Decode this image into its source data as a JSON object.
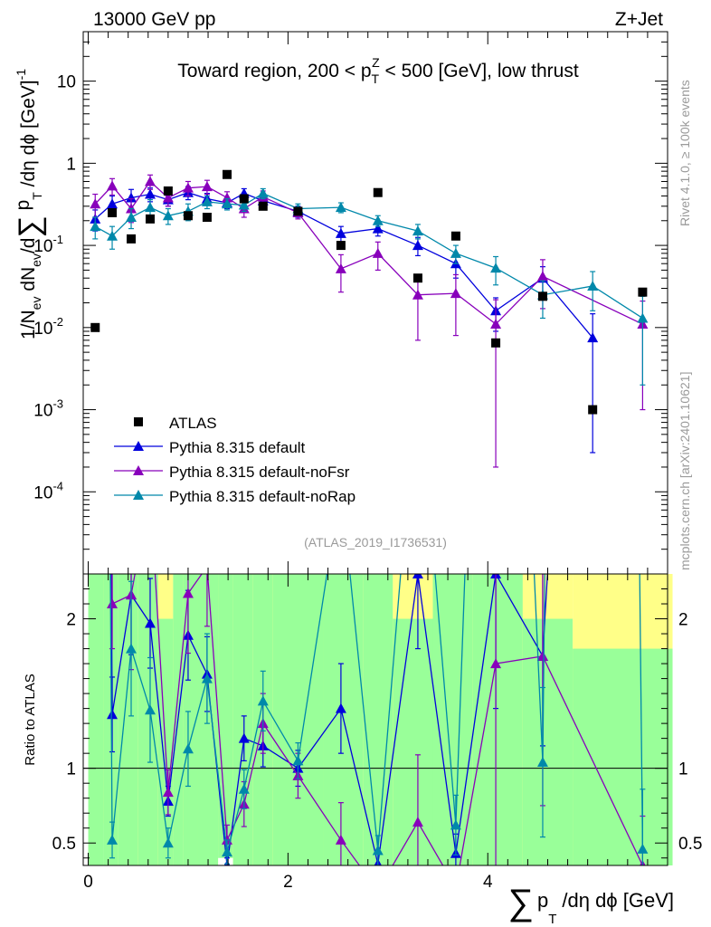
{
  "header": {
    "energy_label": "13000 GeV pp",
    "process_label": "Z+Jet"
  },
  "side_labels": {
    "rivet": "Rivet 4.1.0, ≥ 100k events",
    "mcplots": "mcplots.cern.ch [arXiv:2401.10621]"
  },
  "chart_data": {
    "type": "scatter",
    "title": "Toward region, 200 < p_T^Z < 500 [GeV], low thrust",
    "title_parts": {
      "pre": "Toward region, 200 < p",
      "sup": "Z",
      "sub": "T",
      "post": " < 500 [GeV], low thrust"
    },
    "analysis_label": "(ATLAS_2019_I1736531)",
    "xlabel": "∑ p_T /dη dϕ [GeV]",
    "xlabel_parts": {
      "sum": "∑",
      "p": "p",
      "sub": "T",
      "rest": "/dη dϕ [GeV]"
    },
    "ylabel": "1/N_ev dN_ev/d∑ p_T /dη dϕ [GeV]^-1",
    "ylabel_parts": {
      "a": "1/N",
      "ev1": "ev",
      "b": " dN",
      "ev2": "ev",
      "c": "/d",
      "sum": "∑",
      "d": " p",
      "T": "T",
      "e": " /dη dϕ  [GeV]",
      "exp": "-1"
    },
    "ratio_ylabel": "Ratio to ATLAS",
    "xlim": [
      -0.05,
      5.8
    ],
    "ylim": [
      1e-05,
      40
    ],
    "yscale": "log",
    "ratio_ylim": [
      0.35,
      2.3
    ],
    "x_ticks": [
      {
        "v": 0,
        "label": "0"
      },
      {
        "v": 2,
        "label": "2"
      },
      {
        "v": 4,
        "label": "4"
      }
    ],
    "y_ticks": [
      {
        "v": 10,
        "label": "10"
      },
      {
        "v": 1,
        "label": "1"
      },
      {
        "v": 0.1,
        "label": "10",
        "exp": "-1"
      },
      {
        "v": 0.01,
        "label": "10",
        "exp": "-2"
      },
      {
        "v": 0.001,
        "label": "10",
        "exp": "-3"
      },
      {
        "v": 0.0001,
        "label": "10",
        "exp": "-4"
      }
    ],
    "ratio_ticks": [
      {
        "v": 0.5,
        "label": "0.5"
      },
      {
        "v": 1,
        "label": "1"
      },
      {
        "v": 2,
        "label": "2"
      }
    ],
    "band_bins": [
      0,
      0.15,
      0.3,
      0.5,
      0.7,
      0.85,
      0.95,
      1.1,
      1.3,
      1.45,
      1.65,
      1.85,
      2.35,
      2.75,
      3.05,
      3.45,
      3.85,
      4.35,
      4.85,
      5.85
    ],
    "band_green_lo": [
      0.35,
      0.35,
      0.35,
      0.35,
      0.35,
      0.35,
      0.35,
      0.35,
      0.4,
      0.35,
      0.35,
      0.35,
      0.35,
      0.35,
      0.35,
      0.35,
      0.35,
      0.35,
      0.35
    ],
    "band_green_hi": [
      2.3,
      2.3,
      2.3,
      2.3,
      2.0,
      2.3,
      2.3,
      2.3,
      2.3,
      2.3,
      2.3,
      2.3,
      2.3,
      2.3,
      2.0,
      2.3,
      2.3,
      2.0,
      1.8
    ],
    "band_yellow_lo": [
      0.35,
      0.63,
      0.35,
      0.35,
      0.35,
      0.55,
      0.35,
      0.35,
      0.45,
      0.35,
      0.35,
      0.35,
      0.35,
      0.35,
      0.35,
      0.35,
      0.35,
      0.35,
      0.35
    ],
    "band_yellow_hi": [
      2.3,
      2.3,
      2.3,
      2.3,
      2.3,
      2.3,
      2.3,
      2.3,
      2.3,
      2.3,
      2.3,
      2.3,
      2.3,
      2.3,
      2.3,
      2.3,
      2.3,
      2.3,
      2.3
    ],
    "data": {
      "name": "ATLAS",
      "x": [
        0.07,
        0.24,
        0.43,
        0.62,
        0.8,
        1.0,
        1.19,
        1.39,
        1.56,
        1.75,
        2.1,
        2.53,
        2.9,
        3.3,
        3.68,
        4.08,
        4.55,
        5.05,
        5.55
      ],
      "y": [
        0.01,
        0.25,
        0.12,
        0.21,
        0.46,
        0.23,
        0.22,
        0.73,
        0.37,
        0.3,
        0.26,
        0.1,
        0.44,
        0.04,
        0.13,
        0.0065,
        0.024,
        0.001,
        0.027
      ]
    },
    "series": [
      {
        "name": "Pythia 8.315 default",
        "color": "#0000dd",
        "x": [
          0.07,
          0.24,
          0.43,
          0.62,
          0.8,
          1.0,
          1.19,
          1.39,
          1.56,
          1.75,
          2.1,
          2.53,
          2.9,
          3.3,
          3.68,
          4.08,
          4.55,
          5.05
        ],
        "y": [
          0.21,
          0.32,
          0.38,
          0.42,
          0.36,
          0.44,
          0.37,
          0.33,
          0.43,
          0.35,
          0.26,
          0.14,
          0.16,
          0.1,
          0.06,
          0.016,
          0.04,
          0.0075
        ],
        "yerr": [
          0.06,
          0.08,
          0.1,
          0.08,
          0.06,
          0.08,
          0.06,
          0.05,
          0.06,
          0.05,
          0.04,
          0.03,
          0.03,
          0.025,
          0.02,
          0.007,
          0.015,
          0.0072
        ],
        "ratio": [
          21.0,
          1.36,
          2.16,
          1.97,
          0.78,
          1.89,
          1.63,
          0.35,
          1.2,
          1.15,
          1.0,
          1.4,
          0.36,
          2.3,
          0.43,
          2.3,
          1.75,
          7.5
        ],
        "ratio_err": [
          0.0,
          0.25,
          0.4,
          0.3,
          0.1,
          0.3,
          0.25,
          0.05,
          0.15,
          0.14,
          0.12,
          0.3,
          0.07,
          0.5,
          0.13,
          0.9,
          0.6,
          0.0
        ]
      },
      {
        "name": "Pythia 8.315 default-noFsr",
        "color": "#8800bb",
        "x": [
          0.07,
          0.24,
          0.43,
          0.62,
          0.8,
          1.0,
          1.19,
          1.39,
          1.56,
          1.75,
          2.1,
          2.53,
          2.9,
          3.3,
          3.68,
          4.08,
          4.55,
          5.55
        ],
        "y": [
          0.32,
          0.53,
          0.28,
          0.6,
          0.38,
          0.5,
          0.52,
          0.38,
          0.28,
          0.39,
          0.25,
          0.052,
          0.08,
          0.025,
          0.026,
          0.011,
          0.042,
          0.011
        ],
        "yerr": [
          0.1,
          0.12,
          0.09,
          0.12,
          0.08,
          0.1,
          0.1,
          0.07,
          0.06,
          0.07,
          0.04,
          0.025,
          0.03,
          0.018,
          0.018,
          0.0108,
          0.025,
          0.01
        ],
        "ratio": [
          32.0,
          2.1,
          2.16,
          2.86,
          0.84,
          2.17,
          2.35,
          0.52,
          0.76,
          1.3,
          0.95,
          0.52,
          0.18,
          0.64,
          0.2,
          1.7,
          1.75,
          0.35
        ],
        "ratio_err": [
          0.0,
          0.3,
          0.5,
          0.5,
          0.15,
          0.4,
          0.4,
          0.1,
          0.15,
          0.2,
          0.15,
          0.25,
          0.07,
          0.45,
          0.14,
          1.4,
          1.0,
          0.33
        ]
      },
      {
        "name": "Pythia 8.315 default-noRap",
        "color": "#0088aa",
        "x": [
          0.07,
          0.24,
          0.43,
          0.62,
          0.8,
          1.0,
          1.19,
          1.39,
          1.56,
          1.75,
          2.1,
          2.53,
          2.9,
          3.3,
          3.68,
          4.08,
          4.55,
          5.05,
          5.55
        ],
        "y": [
          0.17,
          0.13,
          0.22,
          0.29,
          0.23,
          0.26,
          0.34,
          0.32,
          0.31,
          0.43,
          0.28,
          0.29,
          0.2,
          0.15,
          0.08,
          0.053,
          0.025,
          0.032,
          0.013
        ],
        "yerr": [
          0.05,
          0.04,
          0.06,
          0.07,
          0.05,
          0.06,
          0.06,
          0.05,
          0.05,
          0.06,
          0.04,
          0.04,
          0.03,
          0.03,
          0.02,
          0.02,
          0.012,
          0.016,
          0.011
        ],
        "ratio": [
          17.0,
          0.52,
          1.8,
          1.39,
          0.5,
          1.13,
          1.6,
          0.44,
          0.86,
          1.45,
          1.05,
          2.9,
          0.45,
          3.7,
          0.62,
          8.0,
          1.04,
          32.0,
          0.46
        ],
        "ratio_err": [
          0.0,
          0.12,
          0.45,
          0.35,
          0.1,
          0.25,
          0.3,
          0.08,
          0.13,
          0.2,
          0.12,
          0.5,
          0.1,
          0.9,
          0.2,
          3.0,
          0.5,
          0.0,
          0.4
        ]
      }
    ]
  }
}
